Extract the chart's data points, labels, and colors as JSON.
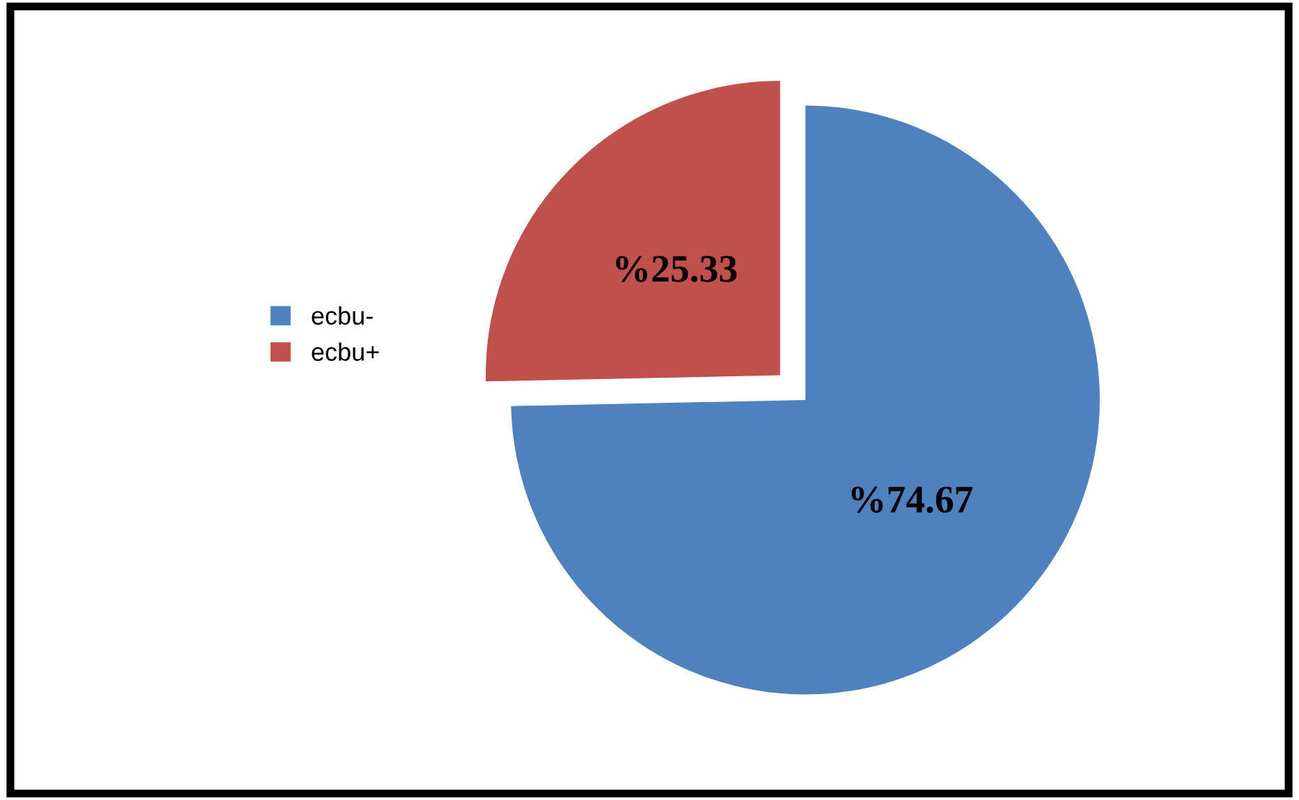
{
  "chart_data": {
    "type": "pie",
    "categories": [
      "ecbu-",
      "ecbu+"
    ],
    "values": [
      74.67,
      25.33
    ],
    "colors": [
      "#4f81bd",
      "#c0504d"
    ],
    "value_labels": [
      "%74.67",
      "%25.33"
    ],
    "legend": "left"
  }
}
